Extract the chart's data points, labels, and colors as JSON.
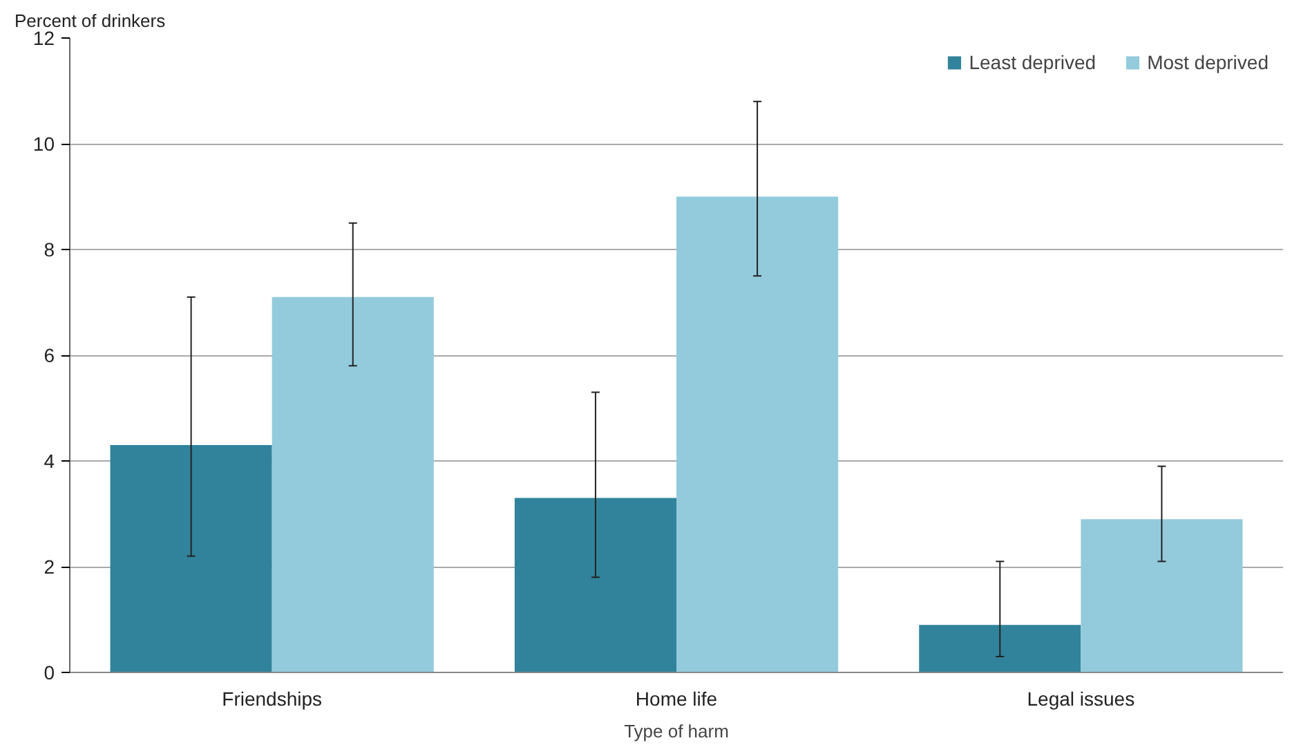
{
  "chart_data": {
    "type": "bar",
    "xlabel": "Type of harm",
    "ylabel": "Percent of drinkers",
    "categories": [
      "Friendships",
      "Home life",
      "Legal issues"
    ],
    "series": [
      {
        "name": "Least deprived",
        "color": "#31839b",
        "values": [
          4.3,
          3.3,
          0.9
        ],
        "errors": [
          [
            2.2,
            7.1
          ],
          [
            1.8,
            5.3
          ],
          [
            0.3,
            2.1
          ]
        ]
      },
      {
        "name": "Most deprived",
        "color": "#93cbdc",
        "values": [
          7.1,
          9.0,
          2.9
        ],
        "errors": [
          [
            5.8,
            8.5
          ],
          [
            7.5,
            10.8
          ],
          [
            2.1,
            3.9
          ]
        ]
      }
    ],
    "ylim": [
      0,
      12
    ],
    "yticks": [
      0,
      2,
      4,
      6,
      8,
      10,
      12
    ],
    "grid": "y",
    "legend": "top right"
  }
}
